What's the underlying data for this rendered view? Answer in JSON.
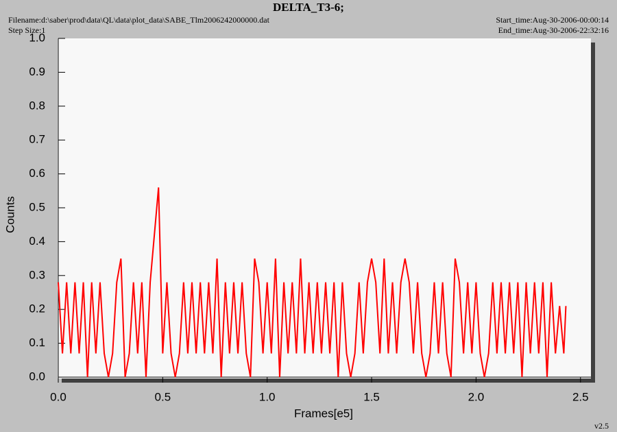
{
  "chart_data": {
    "type": "line",
    "title": "DELTA_T3-6;",
    "header_left": [
      "Filename:d:\\saber\\prod\\data\\QL\\data\\plot_data\\SABE_Tlm2006242000000.dat",
      "Step Size:1"
    ],
    "header_right": [
      "Start_time:Aug-30-2006-00:00:14",
      "End_time:Aug-30-2006-22:32:16"
    ],
    "footer": "v2.5",
    "xlabel": "Frames[e5]",
    "ylabel": "Counts",
    "xlim": [
      0,
      2.55
    ],
    "ylim": [
      0,
      1.0
    ],
    "xticks": [
      {
        "value": 0,
        "label": "0.0"
      },
      0.5,
      {
        "value": 1,
        "label": "1.0"
      },
      1.5,
      {
        "value": 2,
        "label": "2.0"
      },
      2.5
    ],
    "yticks": [
      {
        "value": 0,
        "label": "0.0"
      },
      0.1,
      0.2,
      0.3,
      0.4,
      0.5,
      0.6,
      0.7,
      0.8,
      0.9,
      {
        "value": 1,
        "label": "1.0"
      }
    ],
    "series": [
      {
        "color": "#ff0000",
        "x": [
          0,
          0.02,
          0.04,
          0.06,
          0.08,
          0.1,
          0.12,
          0.14,
          0.16,
          0.18,
          0.2,
          0.22,
          0.24,
          0.26,
          0.28,
          0.3,
          0.32,
          0.34,
          0.36,
          0.38,
          0.4,
          0.42,
          0.44,
          0.46,
          0.48,
          0.5,
          0.52,
          0.54,
          0.56,
          0.58,
          0.6,
          0.62,
          0.64,
          0.66,
          0.68,
          0.7,
          0.72,
          0.74,
          0.76,
          0.78,
          0.8,
          0.82,
          0.84,
          0.86,
          0.88,
          0.9,
          0.92,
          0.94,
          0.96,
          0.98,
          1,
          1.02,
          1.04,
          1.06,
          1.08,
          1.1,
          1.12,
          1.14,
          1.16,
          1.18,
          1.2,
          1.22,
          1.24,
          1.26,
          1.28,
          1.3,
          1.32,
          1.34,
          1.36,
          1.38,
          1.4,
          1.42,
          1.44,
          1.46,
          1.48,
          1.5,
          1.52,
          1.54,
          1.56,
          1.58,
          1.6,
          1.62,
          1.64,
          1.66,
          1.68,
          1.7,
          1.72,
          1.74,
          1.76,
          1.78,
          1.8,
          1.82,
          1.84,
          1.86,
          1.88,
          1.9,
          1.92,
          1.94,
          1.96,
          1.98,
          2,
          2.02,
          2.04,
          2.06,
          2.08,
          2.1,
          2.12,
          2.14,
          2.16,
          2.18,
          2.2,
          2.22,
          2.24,
          2.26,
          2.28,
          2.3,
          2.32,
          2.34,
          2.36,
          2.38,
          2.4,
          2.42,
          2.43
        ],
        "values": [
          0.28,
          0.07,
          0.28,
          0.07,
          0.28,
          0.07,
          0.28,
          0,
          0.28,
          0.07,
          0.28,
          0.07,
          0,
          0.07,
          0.28,
          0.35,
          0,
          0.07,
          0.28,
          0.07,
          0.28,
          0,
          0.28,
          0.42,
          0.56,
          0.07,
          0.28,
          0.07,
          0,
          0.07,
          0.28,
          0.07,
          0.28,
          0.07,
          0.28,
          0.07,
          0.28,
          0.07,
          0.35,
          0,
          0.28,
          0.07,
          0.28,
          0.07,
          0.28,
          0.07,
          0,
          0.35,
          0.28,
          0.07,
          0.28,
          0.07,
          0.35,
          0,
          0.28,
          0.07,
          0.28,
          0.07,
          0.35,
          0.07,
          0.28,
          0.07,
          0.28,
          0.07,
          0.28,
          0.07,
          0.28,
          0,
          0.28,
          0.07,
          0,
          0.07,
          0.28,
          0.07,
          0.28,
          0.35,
          0.28,
          0.07,
          0.35,
          0.07,
          0.28,
          0.07,
          0.28,
          0.35,
          0.28,
          0.07,
          0.28,
          0.07,
          0,
          0.07,
          0.28,
          0.07,
          0.28,
          0.07,
          0,
          0.35,
          0.28,
          0.07,
          0.28,
          0.07,
          0.28,
          0.07,
          0,
          0.07,
          0.28,
          0.07,
          0.28,
          0.07,
          0.28,
          0.07,
          0.28,
          0,
          0.28,
          0.07,
          0.28,
          0.07,
          0.28,
          0,
          0.28,
          0.07,
          0.21,
          0.07,
          0.21
        ]
      }
    ]
  }
}
